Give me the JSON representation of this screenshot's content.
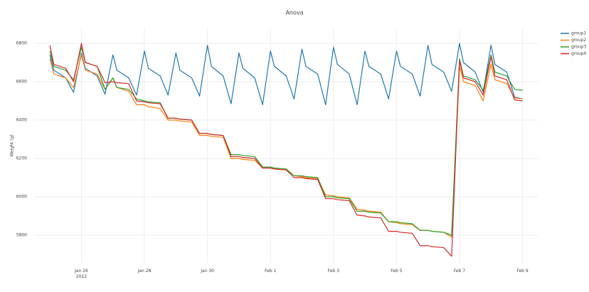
{
  "chart_data": {
    "type": "line",
    "title": "Anova",
    "y_label": "Weight (g)",
    "grid": true,
    "legend_position": "top-right",
    "xlim": [
      "2022-01-24T12:00",
      "2022-02-09T12:00"
    ],
    "ylim": [
      5650,
      6880
    ],
    "yticks": [
      5800,
      6000,
      6200,
      6400,
      6600,
      6800
    ],
    "xticks": [
      {
        "value": "2022-01-26T00:00",
        "label": "Jan 26\n2022"
      },
      {
        "value": "2022-01-28T00:00",
        "label": "Jan 28"
      },
      {
        "value": "2022-01-30T00:00",
        "label": "Jan 30"
      },
      {
        "value": "2022-02-01T00:00",
        "label": "Feb 1"
      },
      {
        "value": "2022-02-03T00:00",
        "label": "Feb 3"
      },
      {
        "value": "2022-02-05T00:00",
        "label": "Feb 5"
      },
      {
        "value": "2022-02-07T00:00",
        "label": "Feb 7"
      },
      {
        "value": "2022-02-09T00:00",
        "label": "Feb 9"
      }
    ],
    "x": [
      "2022-01-25T00:00",
      "2022-01-25T03:00",
      "2022-01-25T12:00",
      "2022-01-25T18:00",
      "2022-01-26T00:00",
      "2022-01-26T03:00",
      "2022-01-26T12:00",
      "2022-01-26T18:00",
      "2022-01-27T00:00",
      "2022-01-27T03:00",
      "2022-01-27T12:00",
      "2022-01-27T18:00",
      "2022-01-28T00:00",
      "2022-01-28T03:00",
      "2022-01-28T12:00",
      "2022-01-28T18:00",
      "2022-01-29T00:00",
      "2022-01-29T03:00",
      "2022-01-29T12:00",
      "2022-01-29T18:00",
      "2022-01-30T00:00",
      "2022-01-30T03:00",
      "2022-01-30T12:00",
      "2022-01-30T18:00",
      "2022-01-31T00:00",
      "2022-01-31T03:00",
      "2022-01-31T12:00",
      "2022-01-31T18:00",
      "2022-02-01T00:00",
      "2022-02-01T03:00",
      "2022-02-01T12:00",
      "2022-02-01T18:00",
      "2022-02-02T00:00",
      "2022-02-02T03:00",
      "2022-02-02T12:00",
      "2022-02-02T18:00",
      "2022-02-03T00:00",
      "2022-02-03T03:00",
      "2022-02-03T12:00",
      "2022-02-03T18:00",
      "2022-02-04T00:00",
      "2022-02-04T03:00",
      "2022-02-04T12:00",
      "2022-02-04T18:00",
      "2022-02-05T00:00",
      "2022-02-05T03:00",
      "2022-02-05T12:00",
      "2022-02-05T18:00",
      "2022-02-06T00:00",
      "2022-02-06T03:00",
      "2022-02-06T12:00",
      "2022-02-06T18:00",
      "2022-02-07T00:00",
      "2022-02-07T03:00",
      "2022-02-07T12:00",
      "2022-02-07T18:00",
      "2022-02-08T00:00",
      "2022-02-08T03:00",
      "2022-02-08T12:00",
      "2022-02-08T18:00",
      "2022-02-09T00:00"
    ],
    "series": [
      {
        "name": "group1",
        "color": "#1f77b4",
        "values": [
          6740,
          6660,
          6620,
          6545,
          6750,
          6670,
          6630,
          6535,
          6740,
          6660,
          6620,
          6530,
          6760,
          6670,
          6630,
          6530,
          6750,
          6660,
          6620,
          6525,
          6790,
          6680,
          6630,
          6485,
          6750,
          6670,
          6620,
          6480,
          6760,
          6680,
          6630,
          6510,
          6770,
          6680,
          6640,
          6480,
          6780,
          6690,
          6640,
          6480,
          6760,
          6680,
          6640,
          6510,
          6760,
          6680,
          6640,
          6525,
          6790,
          6690,
          6650,
          6550,
          6800,
          6700,
          6650,
          6545,
          6790,
          6690,
          6650,
          6520,
          6510
        ]
      },
      {
        "name": "group2",
        "color": "#ff7f0e",
        "values": [
          6720,
          6640,
          6620,
          6570,
          6740,
          6660,
          6640,
          6560,
          6620,
          6570,
          6550,
          6480,
          6480,
          6470,
          6460,
          6400,
          6400,
          6395,
          6390,
          6320,
          6320,
          6315,
          6310,
          6200,
          6200,
          6195,
          6190,
          6150,
          6150,
          6145,
          6140,
          6110,
          6105,
          6100,
          6095,
          6010,
          6005,
          6000,
          5995,
          5935,
          5930,
          5925,
          5920,
          5870,
          5865,
          5860,
          5855,
          5825,
          5825,
          5820,
          5815,
          5790,
          6680,
          6600,
          6580,
          6500,
          6690,
          6610,
          6590,
          6515,
          6510
        ]
      },
      {
        "name": "group3",
        "color": "#2ca02c",
        "values": [
          6760,
          6680,
          6660,
          6610,
          6780,
          6700,
          6680,
          6560,
          6620,
          6570,
          6560,
          6510,
          6500,
          6495,
          6490,
          6410,
          6410,
          6405,
          6400,
          6330,
          6330,
          6325,
          6320,
          6220,
          6220,
          6215,
          6210,
          6155,
          6155,
          6150,
          6145,
          6110,
          6110,
          6105,
          6100,
          6000,
          6000,
          5995,
          5990,
          5925,
          5925,
          5920,
          5915,
          5870,
          5870,
          5865,
          5860,
          5825,
          5825,
          5820,
          5815,
          5800,
          6720,
          6630,
          6610,
          6555,
          6740,
          6650,
          6630,
          6560,
          6555
        ]
      },
      {
        "name": "group4",
        "color": "#d62728",
        "values": [
          6790,
          6690,
          6670,
          6600,
          6800,
          6700,
          6680,
          6595,
          6600,
          6595,
          6590,
          6500,
          6495,
          6490,
          6485,
          6410,
          6410,
          6405,
          6400,
          6330,
          6330,
          6325,
          6320,
          6210,
          6210,
          6205,
          6200,
          6150,
          6150,
          6145,
          6140,
          6100,
          6100,
          6095,
          6090,
          5990,
          5990,
          5985,
          5980,
          5905,
          5900,
          5895,
          5890,
          5820,
          5820,
          5815,
          5810,
          5745,
          5745,
          5740,
          5735,
          5690,
          6710,
          6620,
          6600,
          6530,
          6730,
          6630,
          6610,
          6505,
          6500
        ]
      }
    ]
  }
}
